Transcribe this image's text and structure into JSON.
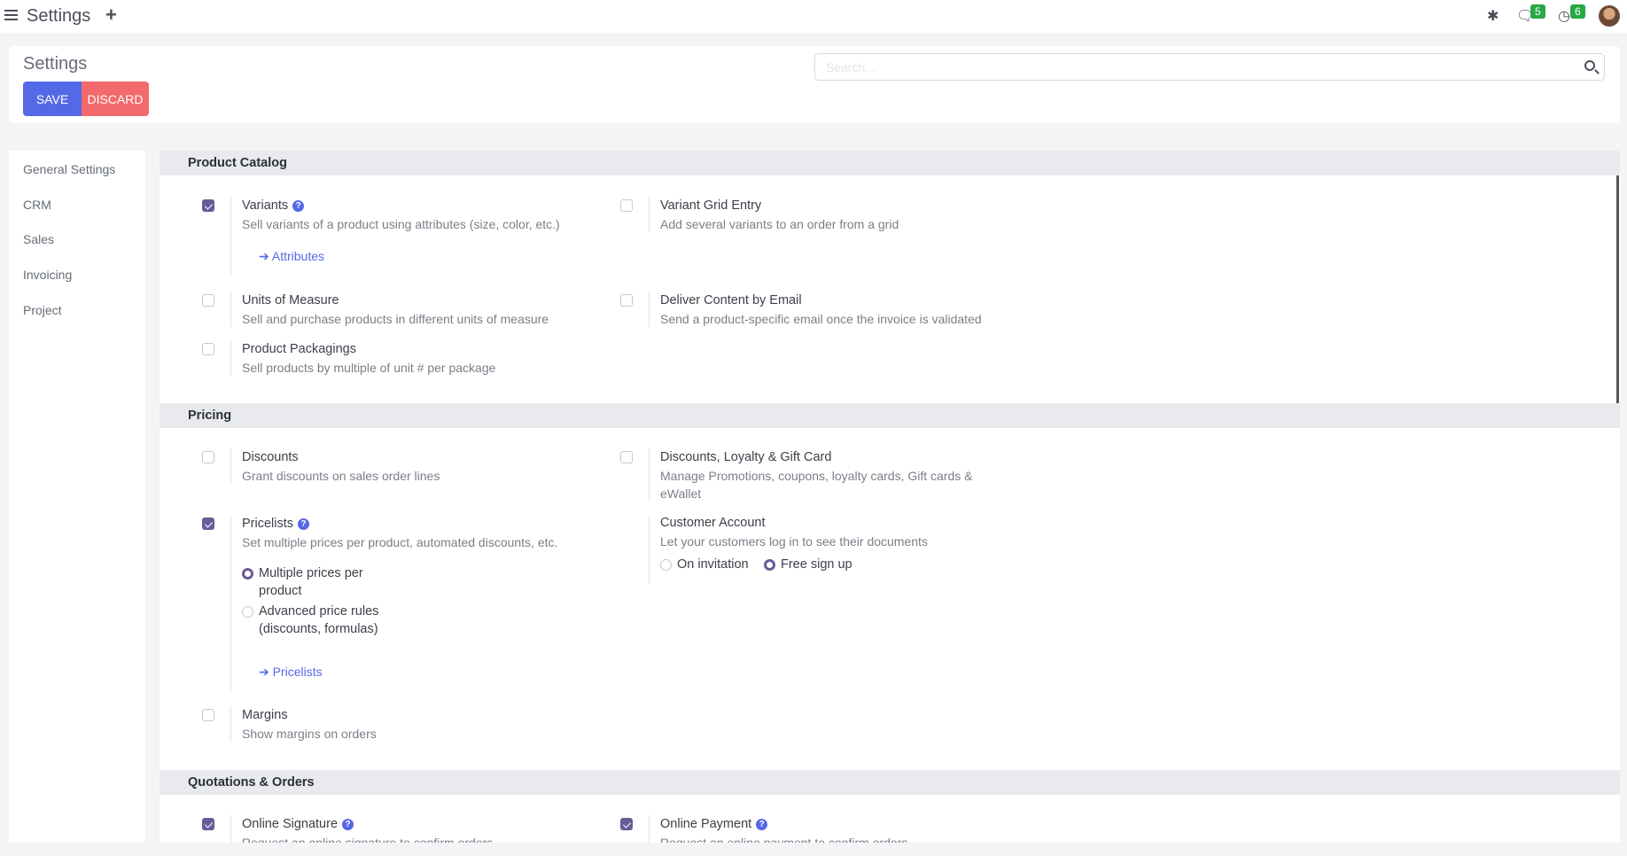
{
  "topbar": {
    "title": "Settings",
    "chat_count": "5",
    "activity_count": "6"
  },
  "control_panel": {
    "title": "Settings",
    "save_label": "SAVE",
    "discard_label": "DISCARD",
    "search_placeholder": "Search..."
  },
  "sidebar": {
    "items": [
      {
        "label": "General Settings"
      },
      {
        "label": "CRM"
      },
      {
        "label": "Sales"
      },
      {
        "label": "Invoicing"
      },
      {
        "label": "Project"
      }
    ]
  },
  "colors": {
    "primary": "#5469e6",
    "danger": "#f4696b",
    "checkbox": "#6b5a98",
    "badge": "#28a745"
  },
  "sections": {
    "product_catalog": {
      "title": "Product Catalog",
      "variants": {
        "label": "Variants",
        "desc": "Sell variants of a product using attributes (size, color, etc.)",
        "link": "Attributes",
        "checked": true
      },
      "variant_grid": {
        "label": "Variant Grid Entry",
        "desc": "Add several variants to an order from a grid",
        "checked": false
      },
      "uom": {
        "label": "Units of Measure",
        "desc": "Sell and purchase products in different units of measure",
        "checked": false
      },
      "deliver_email": {
        "label": "Deliver Content by Email",
        "desc": "Send a product-specific email once the invoice is validated",
        "checked": false
      },
      "packagings": {
        "label": "Product Packagings",
        "desc": "Sell products by multiple of unit # per package",
        "checked": false
      }
    },
    "pricing": {
      "title": "Pricing",
      "discounts": {
        "label": "Discounts",
        "desc": "Grant discounts on sales order lines",
        "checked": false
      },
      "loyalty": {
        "label": "Discounts, Loyalty & Gift Card",
        "desc": "Manage Promotions, coupons, loyalty cards, Gift cards & eWallet",
        "checked": false
      },
      "pricelists": {
        "label": "Pricelists",
        "desc": "Set multiple prices per product, automated discounts, etc.",
        "checked": true,
        "option1": "Multiple prices per product",
        "option2": "Advanced price rules (discounts, formulas)",
        "selected": "Multiple prices per product",
        "link": "Pricelists"
      },
      "customer_account": {
        "label": "Customer Account",
        "desc": "Let your customers log in to see their documents",
        "option1": "On invitation",
        "option2": "Free sign up",
        "selected": "Free sign up"
      },
      "margins": {
        "label": "Margins",
        "desc": "Show margins on orders",
        "checked": false
      }
    },
    "quotations": {
      "title": "Quotations & Orders",
      "signature": {
        "label": "Online Signature",
        "desc": "Request an online signature to confirm orders",
        "checked": true
      },
      "payment": {
        "label": "Online Payment",
        "desc": "Request an online payment to confirm orders",
        "checked": true
      }
    }
  }
}
